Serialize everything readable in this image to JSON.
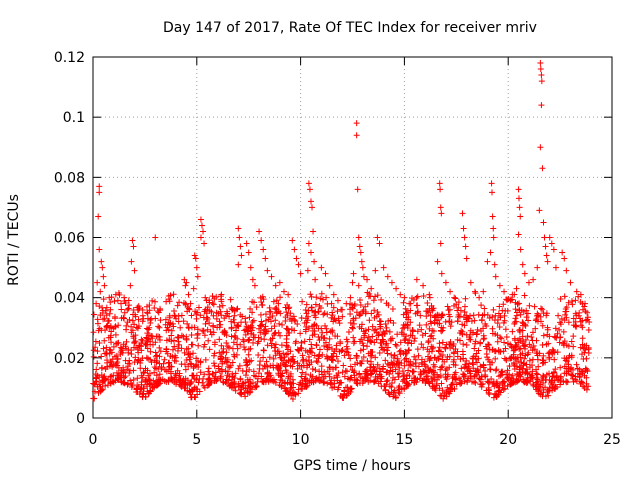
{
  "chart_data": {
    "type": "scatter",
    "title": "Day 147 of 2017, Rate Of TEC Index for receiver mriv",
    "xlabel": "GPS time / hours",
    "ylabel": "ROTI / TECUs",
    "xlim": [
      0,
      25
    ],
    "ylim": [
      0,
      0.12
    ],
    "xticks": [
      0,
      5,
      10,
      15,
      20,
      25
    ],
    "yticks": [
      0,
      0.02,
      0.04,
      0.06,
      0.08,
      0.1,
      0.12
    ],
    "xtick_labels": [
      "0",
      "5",
      "10",
      "15",
      "20",
      "25"
    ],
    "ytick_labels": [
      "0",
      "0.02",
      "0.04",
      "0.06",
      "0.08",
      "0.1",
      "0.12"
    ],
    "grid": true,
    "marker": "+",
    "color": "#ff0000",
    "series": [
      {
        "name": "ROTI",
        "points": [
          [
            0.3,
            0.077
          ],
          [
            0.3,
            0.075
          ],
          [
            0.25,
            0.067
          ],
          [
            0.3,
            0.056
          ],
          [
            0.4,
            0.052
          ],
          [
            0.45,
            0.05
          ],
          [
            0.2,
            0.045
          ],
          [
            0.35,
            0.042
          ],
          [
            0.15,
            0.038
          ],
          [
            0.5,
            0.047
          ],
          [
            0.55,
            0.044
          ],
          [
            1.1,
            0.041
          ],
          [
            1.2,
            0.039
          ],
          [
            1.35,
            0.038
          ],
          [
            1.5,
            0.04
          ],
          [
            1.65,
            0.036
          ],
          [
            1.9,
            0.059
          ],
          [
            1.95,
            0.057
          ],
          [
            1.85,
            0.052
          ],
          [
            2.0,
            0.049
          ],
          [
            1.8,
            0.044
          ],
          [
            2.2,
            0.036
          ],
          [
            2.4,
            0.034
          ],
          [
            2.6,
            0.037
          ],
          [
            3.0,
            0.06
          ],
          [
            2.8,
            0.033
          ],
          [
            3.2,
            0.03
          ],
          [
            3.5,
            0.031
          ],
          [
            3.8,
            0.029
          ],
          [
            4.0,
            0.033
          ],
          [
            4.2,
            0.03
          ],
          [
            4.4,
            0.046
          ],
          [
            4.45,
            0.044
          ],
          [
            4.5,
            0.045
          ],
          [
            4.6,
            0.041
          ],
          [
            4.7,
            0.038
          ],
          [
            4.9,
            0.054
          ],
          [
            4.95,
            0.053
          ],
          [
            5.0,
            0.05
          ],
          [
            5.05,
            0.047
          ],
          [
            4.85,
            0.043
          ],
          [
            5.2,
            0.066
          ],
          [
            5.25,
            0.064
          ],
          [
            5.3,
            0.062
          ],
          [
            5.2,
            0.06
          ],
          [
            5.35,
            0.058
          ],
          [
            5.5,
            0.036
          ],
          [
            5.8,
            0.034
          ],
          [
            6.1,
            0.031
          ],
          [
            6.4,
            0.034
          ],
          [
            6.7,
            0.036
          ],
          [
            7.0,
            0.063
          ],
          [
            7.05,
            0.06
          ],
          [
            7.1,
            0.057
          ],
          [
            7.15,
            0.054
          ],
          [
            7.0,
            0.051
          ],
          [
            7.4,
            0.058
          ],
          [
            7.5,
            0.055
          ],
          [
            7.6,
            0.05
          ],
          [
            7.7,
            0.046
          ],
          [
            7.8,
            0.044
          ],
          [
            8.0,
            0.062
          ],
          [
            8.1,
            0.059
          ],
          [
            8.2,
            0.056
          ],
          [
            8.3,
            0.053
          ],
          [
            8.4,
            0.049
          ],
          [
            8.6,
            0.047
          ],
          [
            8.8,
            0.044
          ],
          [
            9.0,
            0.045
          ],
          [
            9.2,
            0.042
          ],
          [
            9.4,
            0.041
          ],
          [
            9.6,
            0.059
          ],
          [
            9.7,
            0.056
          ],
          [
            9.8,
            0.053
          ],
          [
            9.9,
            0.051
          ],
          [
            10.0,
            0.048
          ],
          [
            10.4,
            0.078
          ],
          [
            10.45,
            0.076
          ],
          [
            10.5,
            0.072
          ],
          [
            10.55,
            0.07
          ],
          [
            10.6,
            0.062
          ],
          [
            10.4,
            0.058
          ],
          [
            10.5,
            0.055
          ],
          [
            10.65,
            0.052
          ],
          [
            10.35,
            0.049
          ],
          [
            10.7,
            0.046
          ],
          [
            11.0,
            0.05
          ],
          [
            11.2,
            0.048
          ],
          [
            11.4,
            0.044
          ],
          [
            11.6,
            0.041
          ],
          [
            11.8,
            0.039
          ],
          [
            12.0,
            0.036
          ],
          [
            12.2,
            0.038
          ],
          [
            12.4,
            0.04
          ],
          [
            12.5,
            0.045
          ],
          [
            12.55,
            0.048
          ],
          [
            12.7,
            0.098
          ],
          [
            12.7,
            0.094
          ],
          [
            12.75,
            0.076
          ],
          [
            12.8,
            0.06
          ],
          [
            12.85,
            0.057
          ],
          [
            12.9,
            0.055
          ],
          [
            12.95,
            0.052
          ],
          [
            13.0,
            0.05
          ],
          [
            13.05,
            0.047
          ],
          [
            12.8,
            0.044
          ],
          [
            13.2,
            0.046
          ],
          [
            13.4,
            0.043
          ],
          [
            13.6,
            0.049
          ],
          [
            13.7,
            0.06
          ],
          [
            13.8,
            0.058
          ],
          [
            14.0,
            0.05
          ],
          [
            14.2,
            0.047
          ],
          [
            14.4,
            0.045
          ],
          [
            14.6,
            0.043
          ],
          [
            14.8,
            0.041
          ],
          [
            15.0,
            0.04
          ],
          [
            15.3,
            0.038
          ],
          [
            15.6,
            0.046
          ],
          [
            15.9,
            0.044
          ],
          [
            16.2,
            0.041
          ],
          [
            16.7,
            0.078
          ],
          [
            16.72,
            0.076
          ],
          [
            16.75,
            0.07
          ],
          [
            16.78,
            0.068
          ],
          [
            16.75,
            0.058
          ],
          [
            16.6,
            0.052
          ],
          [
            16.8,
            0.048
          ],
          [
            17.0,
            0.045
          ],
          [
            17.2,
            0.042
          ],
          [
            17.4,
            0.04
          ],
          [
            17.8,
            0.068
          ],
          [
            17.85,
            0.063
          ],
          [
            17.9,
            0.06
          ],
          [
            17.95,
            0.057
          ],
          [
            18.0,
            0.053
          ],
          [
            18.2,
            0.045
          ],
          [
            18.4,
            0.042
          ],
          [
            18.6,
            0.04
          ],
          [
            18.8,
            0.042
          ],
          [
            19.0,
            0.052
          ],
          [
            19.2,
            0.078
          ],
          [
            19.22,
            0.075
          ],
          [
            19.25,
            0.067
          ],
          [
            19.28,
            0.063
          ],
          [
            19.3,
            0.06
          ],
          [
            19.15,
            0.055
          ],
          [
            19.35,
            0.051
          ],
          [
            19.4,
            0.047
          ],
          [
            19.6,
            0.044
          ],
          [
            19.8,
            0.042
          ],
          [
            20.2,
            0.041
          ],
          [
            20.4,
            0.043
          ],
          [
            20.5,
            0.076
          ],
          [
            20.52,
            0.073
          ],
          [
            20.55,
            0.07
          ],
          [
            20.58,
            0.067
          ],
          [
            20.5,
            0.061
          ],
          [
            20.6,
            0.056
          ],
          [
            20.7,
            0.051
          ],
          [
            20.8,
            0.048
          ],
          [
            21.0,
            0.045
          ],
          [
            21.2,
            0.046
          ],
          [
            21.4,
            0.05
          ],
          [
            21.55,
            0.118
          ],
          [
            21.57,
            0.116
          ],
          [
            21.6,
            0.114
          ],
          [
            21.62,
            0.112
          ],
          [
            21.6,
            0.104
          ],
          [
            21.55,
            0.09
          ],
          [
            21.65,
            0.083
          ],
          [
            21.5,
            0.069
          ],
          [
            21.7,
            0.065
          ],
          [
            21.75,
            0.06
          ],
          [
            21.8,
            0.057
          ],
          [
            21.85,
            0.054
          ],
          [
            21.9,
            0.052
          ],
          [
            22.0,
            0.06
          ],
          [
            22.1,
            0.058
          ],
          [
            22.2,
            0.056
          ],
          [
            22.3,
            0.05
          ],
          [
            22.6,
            0.055
          ],
          [
            22.7,
            0.053
          ],
          [
            22.8,
            0.049
          ],
          [
            23.0,
            0.045
          ],
          [
            23.3,
            0.042
          ],
          [
            23.5,
            0.041
          ],
          [
            23.7,
            0.038
          ],
          [
            23.8,
            0.035
          ],
          [
            23.6,
            0.036
          ],
          [
            23.4,
            0.034
          ]
        ]
      }
    ]
  }
}
